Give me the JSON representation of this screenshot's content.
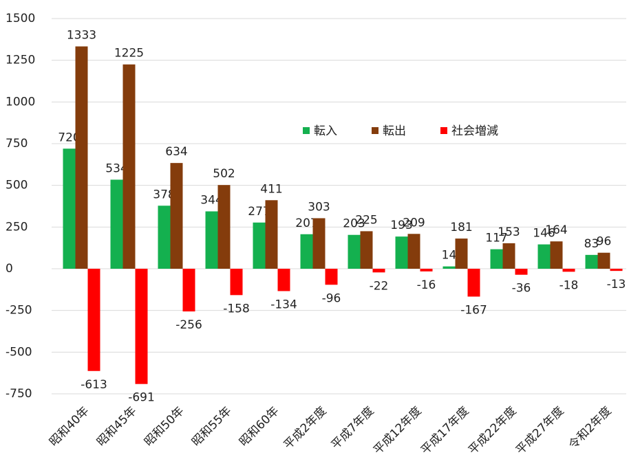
{
  "chart_data": {
    "type": "bar",
    "categories": [
      "昭和40年",
      "昭和45年",
      "昭和50年",
      "昭和55年",
      "昭和60年",
      "平成2年度",
      "平成7年度",
      "平成12年度",
      "平成17年度",
      "平成22年度",
      "平成27年度",
      "令和2年度"
    ],
    "series": [
      {
        "name": "転入",
        "color": "#14b04f",
        "values": [
          720,
          534,
          378,
          344,
          277,
          207,
          203,
          193,
          14,
          117,
          146,
          83
        ]
      },
      {
        "name": "転出",
        "color": "#843c0c",
        "values": [
          1333,
          1225,
          634,
          502,
          411,
          303,
          225,
          209,
          181,
          153,
          164,
          96
        ]
      },
      {
        "name": "社会増減",
        "color": "#ff0000",
        "values": [
          -613,
          -691,
          -256,
          -158,
          -134,
          -96,
          -22,
          -16,
          -167,
          -36,
          -18,
          -13
        ]
      }
    ],
    "ylim": [
      -750,
      1500
    ],
    "yticks": [
      -750,
      -500,
      -250,
      0,
      250,
      500,
      750,
      1000,
      1250,
      1500
    ],
    "grid": true
  }
}
